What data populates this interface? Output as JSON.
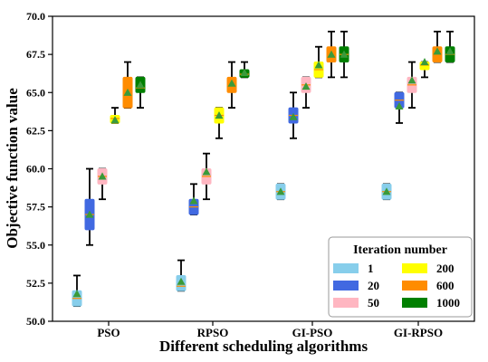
{
  "chart_data": {
    "type": "box",
    "title": "",
    "xlabel": "Different scheduling algorithms",
    "ylabel": "Objective function value",
    "ylim": [
      50.0,
      70.0
    ],
    "yticks": [
      50.0,
      52.5,
      55.0,
      57.5,
      60.0,
      62.5,
      65.0,
      67.5,
      70.0
    ],
    "ytick_labels": [
      "50.0",
      "52.5",
      "55.0",
      "57.5",
      "60.0",
      "62.5",
      "65.0",
      "67.5",
      "70.0"
    ],
    "categories": [
      "PSO",
      "RPSO",
      "GI-PSO",
      "GI-RPSO"
    ],
    "grid": false,
    "legend": {
      "title": "Iteration number",
      "placement": "lower-right",
      "columns": 2
    },
    "series": [
      {
        "name": "1",
        "color": "#87ceeb",
        "boxes": [
          {
            "min": 51,
            "q1": 51,
            "median": 51.5,
            "q3": 52,
            "max": 53,
            "mean": 51.8
          },
          {
            "min": 52,
            "q1": 52,
            "median": 52.3,
            "q3": 53,
            "max": 54,
            "mean": 52.6
          },
          {
            "min": 58,
            "q1": 58,
            "median": 58.5,
            "q3": 59,
            "max": 59,
            "mean": 58.5
          },
          {
            "min": 58,
            "q1": 58,
            "median": 58.5,
            "q3": 59,
            "max": 59,
            "mean": 58.5
          }
        ]
      },
      {
        "name": "20",
        "color": "#4169e1",
        "boxes": [
          {
            "min": 55,
            "q1": 56,
            "median": 57,
            "q3": 58,
            "max": 60,
            "mean": 57.0
          },
          {
            "min": 57,
            "q1": 57,
            "median": 57.5,
            "q3": 58,
            "max": 59,
            "mean": 57.9
          },
          {
            "min": 62,
            "q1": 63,
            "median": 63.5,
            "q3": 64,
            "max": 65,
            "mean": 63.4
          },
          {
            "min": 63,
            "q1": 64,
            "median": 64.5,
            "q3": 65,
            "max": 65,
            "mean": 64.1
          }
        ]
      },
      {
        "name": "50",
        "color": "#ffb6c1",
        "boxes": [
          {
            "min": 58,
            "q1": 59,
            "median": 59.5,
            "q3": 60,
            "max": 60,
            "mean": 59.5
          },
          {
            "min": 58,
            "q1": 59,
            "median": 59.5,
            "q3": 60,
            "max": 61,
            "mean": 59.8
          },
          {
            "min": 64,
            "q1": 65,
            "median": 65.5,
            "q3": 66,
            "max": 66,
            "mean": 65.4
          },
          {
            "min": 64,
            "q1": 65,
            "median": 65.5,
            "q3": 66,
            "max": 67,
            "mean": 65.8
          }
        ]
      },
      {
        "name": "200",
        "color": "#ffff00",
        "boxes": [
          {
            "min": 63,
            "q1": 63,
            "median": 63.3,
            "q3": 63.5,
            "max": 64,
            "mean": 63.2
          },
          {
            "min": 62,
            "q1": 63,
            "median": 63.5,
            "q3": 64,
            "max": 64,
            "mean": 63.5
          },
          {
            "min": 66,
            "q1": 66,
            "median": 66.5,
            "q3": 67,
            "max": 68,
            "mean": 66.8
          },
          {
            "min": 66,
            "q1": 66.5,
            "median": 66.8,
            "q3": 67,
            "max": 67,
            "mean": 67.0
          }
        ]
      },
      {
        "name": "600",
        "color": "#ff8c00",
        "boxes": [
          {
            "min": 64,
            "q1": 64,
            "median": 65,
            "q3": 66,
            "max": 67,
            "mean": 65.0
          },
          {
            "min": 64,
            "q1": 65,
            "median": 65.5,
            "q3": 66,
            "max": 67,
            "mean": 65.6
          },
          {
            "min": 66,
            "q1": 67,
            "median": 67.5,
            "q3": 68,
            "max": 69,
            "mean": 67.5
          },
          {
            "min": 67,
            "q1": 67,
            "median": 67.8,
            "q3": 68,
            "max": 69,
            "mean": 67.7
          }
        ]
      },
      {
        "name": "1000",
        "color": "#008000",
        "boxes": [
          {
            "min": 64,
            "q1": 65,
            "median": 65.3,
            "q3": 66,
            "max": 66,
            "mean": 65.5
          },
          {
            "min": 66,
            "q1": 66,
            "median": 66.2,
            "q3": 66.5,
            "max": 67,
            "mean": 66.3
          },
          {
            "min": 66,
            "q1": 67,
            "median": 67.5,
            "q3": 68,
            "max": 69,
            "mean": 67.5
          },
          {
            "min": 67,
            "q1": 67,
            "median": 67.5,
            "q3": 68,
            "max": 69,
            "mean": 67.7
          }
        ]
      }
    ],
    "mean_marker": {
      "shape": "triangle",
      "color": "#3a9a3a"
    }
  }
}
